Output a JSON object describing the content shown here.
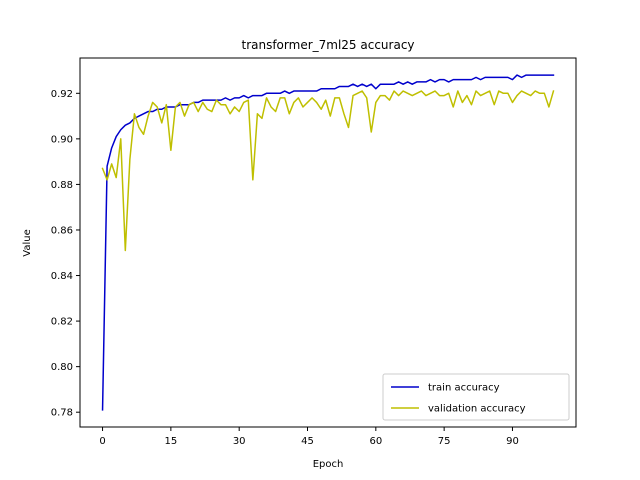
{
  "chart_data": {
    "type": "line",
    "title": "transformer_7ml25 accuracy",
    "xlabel": "Epoch",
    "ylabel": "Value",
    "xlim": [
      -4.95,
      103.95
    ],
    "ylim": [
      0.7735,
      0.9355
    ],
    "xticks": [
      0,
      15,
      30,
      45,
      60,
      75,
      90
    ],
    "yticks": [
      0.78,
      0.8,
      0.82,
      0.84,
      0.86,
      0.88,
      0.9,
      0.92
    ],
    "ytick_labels": [
      "0.78",
      "0.80",
      "0.82",
      "0.84",
      "0.86",
      "0.88",
      "0.90",
      "0.92"
    ],
    "grid": false,
    "legend_position": "lower right",
    "x": [
      0,
      1,
      2,
      3,
      4,
      5,
      6,
      7,
      8,
      9,
      10,
      11,
      12,
      13,
      14,
      15,
      16,
      17,
      18,
      19,
      20,
      21,
      22,
      23,
      24,
      25,
      26,
      27,
      28,
      29,
      30,
      31,
      32,
      33,
      34,
      35,
      36,
      37,
      38,
      39,
      40,
      41,
      42,
      43,
      44,
      45,
      46,
      47,
      48,
      49,
      50,
      51,
      52,
      53,
      54,
      55,
      56,
      57,
      58,
      59,
      60,
      61,
      62,
      63,
      64,
      65,
      66,
      67,
      68,
      69,
      70,
      71,
      72,
      73,
      74,
      75,
      76,
      77,
      78,
      79,
      80,
      81,
      82,
      83,
      84,
      85,
      86,
      87,
      88,
      89,
      90,
      91,
      92,
      93,
      94,
      95,
      96,
      97,
      98,
      99
    ],
    "series": [
      {
        "name": "train accuracy",
        "color": "#0000cc",
        "values": [
          0.781,
          0.888,
          0.896,
          0.901,
          0.904,
          0.906,
          0.907,
          0.909,
          0.91,
          0.911,
          0.912,
          0.912,
          0.913,
          0.913,
          0.914,
          0.914,
          0.914,
          0.915,
          0.915,
          0.915,
          0.916,
          0.916,
          0.917,
          0.917,
          0.917,
          0.917,
          0.917,
          0.918,
          0.917,
          0.918,
          0.918,
          0.919,
          0.918,
          0.919,
          0.919,
          0.919,
          0.92,
          0.92,
          0.92,
          0.92,
          0.921,
          0.92,
          0.921,
          0.921,
          0.921,
          0.921,
          0.921,
          0.921,
          0.922,
          0.922,
          0.922,
          0.922,
          0.923,
          0.923,
          0.923,
          0.924,
          0.923,
          0.924,
          0.923,
          0.924,
          0.922,
          0.924,
          0.924,
          0.924,
          0.924,
          0.925,
          0.924,
          0.925,
          0.924,
          0.925,
          0.925,
          0.925,
          0.926,
          0.925,
          0.926,
          0.926,
          0.925,
          0.926,
          0.926,
          0.926,
          0.926,
          0.926,
          0.927,
          0.926,
          0.927,
          0.927,
          0.927,
          0.927,
          0.927,
          0.927,
          0.926,
          0.928,
          0.927,
          0.928,
          0.928,
          0.928,
          0.928,
          0.928,
          0.928,
          0.928
        ]
      },
      {
        "name": "validation accuracy",
        "color": "#bfbf00",
        "values": [
          0.887,
          0.882,
          0.889,
          0.883,
          0.9,
          0.851,
          0.891,
          0.911,
          0.905,
          0.902,
          0.91,
          0.916,
          0.914,
          0.907,
          0.915,
          0.895,
          0.914,
          0.916,
          0.91,
          0.915,
          0.916,
          0.912,
          0.916,
          0.913,
          0.912,
          0.917,
          0.915,
          0.915,
          0.911,
          0.914,
          0.912,
          0.916,
          0.917,
          0.882,
          0.911,
          0.909,
          0.918,
          0.914,
          0.912,
          0.918,
          0.918,
          0.911,
          0.916,
          0.918,
          0.914,
          0.916,
          0.918,
          0.916,
          0.913,
          0.917,
          0.91,
          0.918,
          0.918,
          0.911,
          0.905,
          0.919,
          0.92,
          0.921,
          0.918,
          0.903,
          0.916,
          0.919,
          0.919,
          0.917,
          0.921,
          0.919,
          0.921,
          0.92,
          0.919,
          0.92,
          0.921,
          0.919,
          0.92,
          0.921,
          0.919,
          0.919,
          0.92,
          0.914,
          0.921,
          0.916,
          0.919,
          0.915,
          0.921,
          0.919,
          0.92,
          0.921,
          0.915,
          0.921,
          0.92,
          0.92,
          0.916,
          0.919,
          0.921,
          0.92,
          0.919,
          0.921,
          0.92,
          0.92,
          0.914,
          0.921
        ]
      }
    ]
  }
}
